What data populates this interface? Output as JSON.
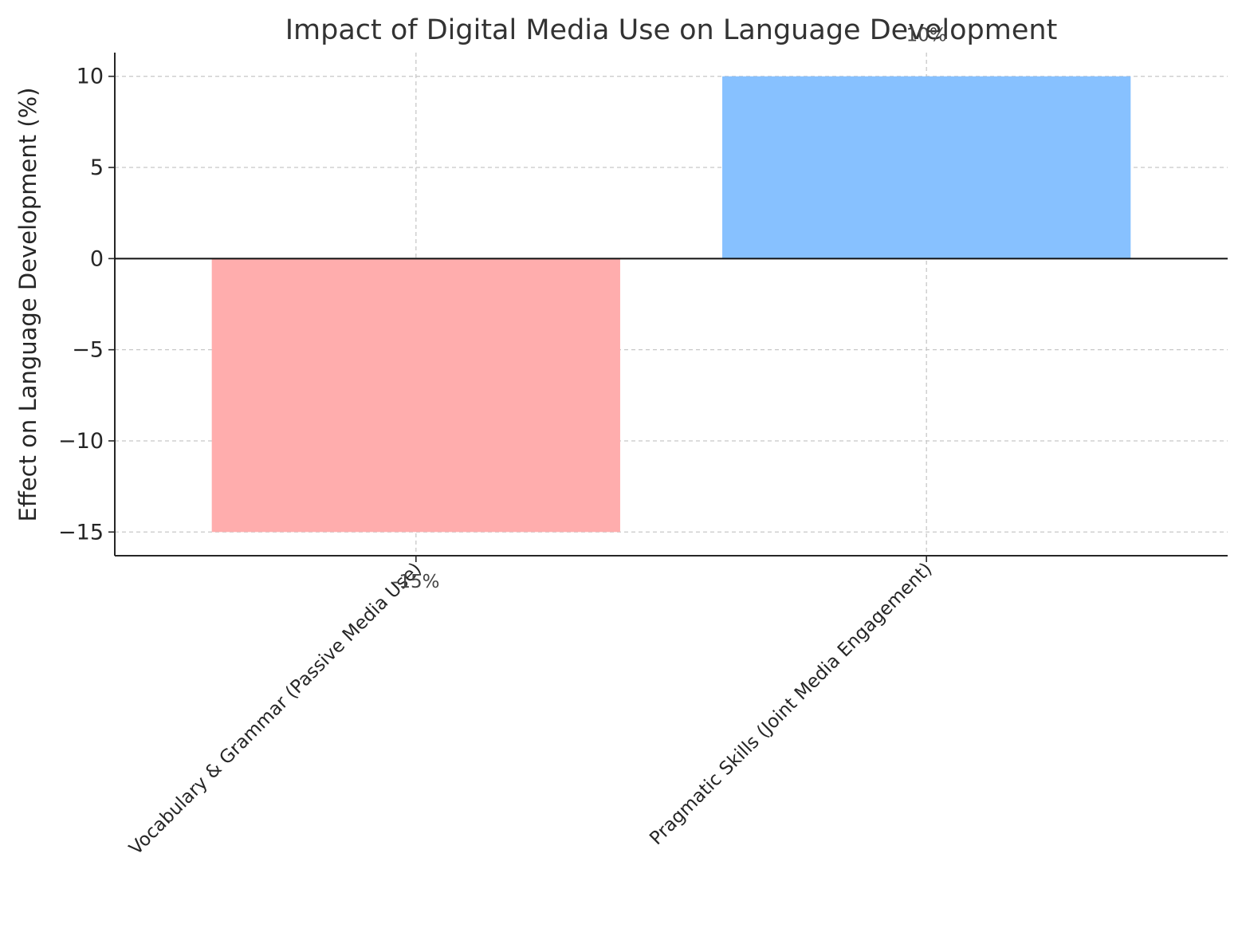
{
  "chart_data": {
    "type": "bar",
    "title": "Impact of Digital Media Use on Language Development",
    "ylabel": "Effect on Language Development (%)",
    "xlabel": "",
    "categories": [
      "Vocabulary & Grammar (Passive Media Use)",
      "Pragmatic Skills (Joint Media Engagement)"
    ],
    "values": [
      -15,
      10
    ],
    "data_labels": [
      "-15%",
      "10%"
    ],
    "colors": [
      "#ffadad",
      "#87c1ff"
    ],
    "ylim": [
      -16.3,
      11.3
    ],
    "yticks": [
      10,
      5,
      0,
      -5,
      -10,
      -15
    ],
    "ytick_labels": [
      "10",
      "5",
      "0",
      "−5",
      "−10",
      "−15"
    ],
    "grid": true,
    "grid_style": "dashed",
    "zero_line": true
  }
}
